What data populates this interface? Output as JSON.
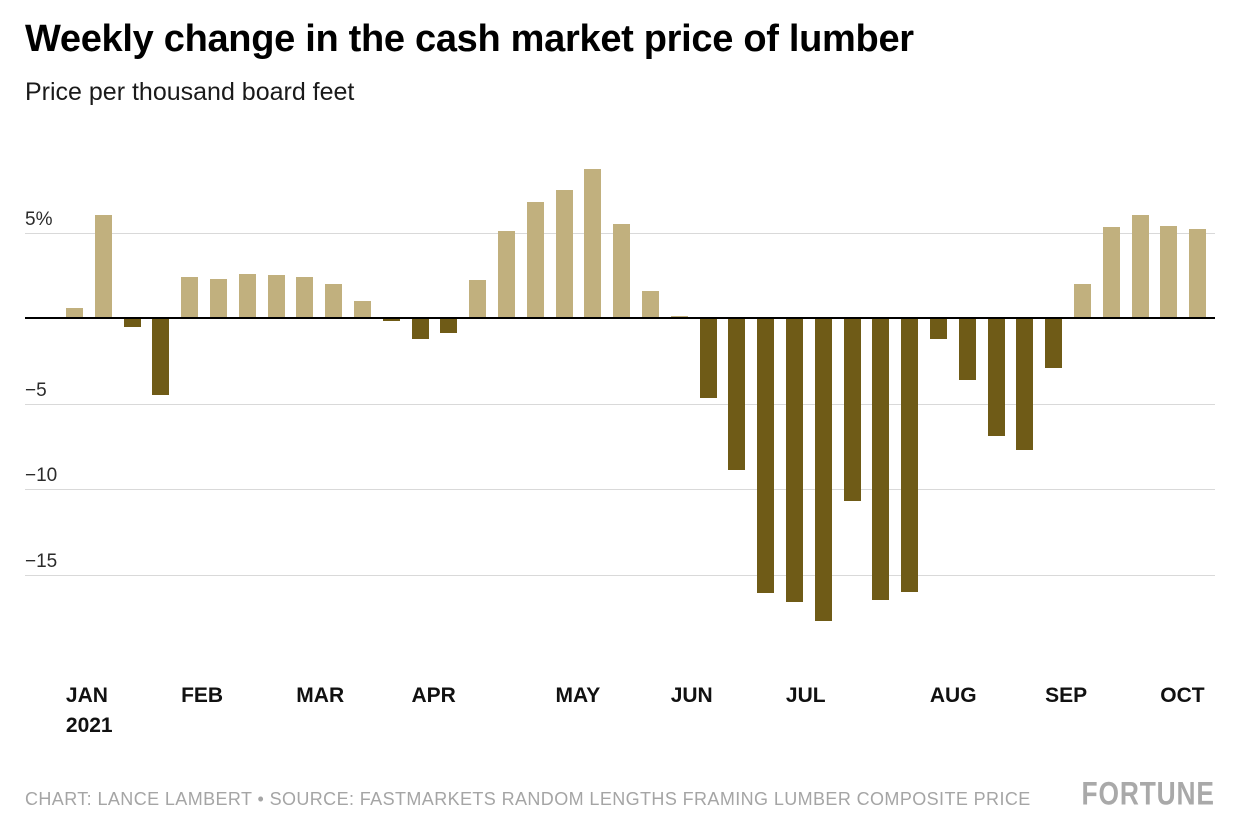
{
  "header": {
    "title": "Weekly change in the cash market price of lumber",
    "subtitle": "Price per thousand board feet"
  },
  "footer": {
    "attribution": "CHART: LANCE LAMBERT • SOURCE: FASTMARKETS RANDOM LENGTHS FRAMING LUMBER COMPOSITE PRICE",
    "brand": "FORTUNE"
  },
  "chart_data": {
    "type": "bar",
    "title": "Weekly change in the cash market price of lumber",
    "subtitle": "Price per thousand board feet",
    "value_unit": "percent weekly change",
    "ylim": [
      -18.6,
      9.9
    ],
    "grid": true,
    "legend": "none",
    "colors": {
      "positive": "#c1b07e",
      "negative": "#6f5b17"
    },
    "y_ticks": [
      {
        "value": 5,
        "label": "5%"
      },
      {
        "value": 0,
        "label": ""
      },
      {
        "value": -5,
        "label": "−5"
      },
      {
        "value": -10,
        "label": "−10"
      },
      {
        "value": -15,
        "label": "−15"
      }
    ],
    "months": [
      {
        "label": "JAN",
        "sublabel": "2021",
        "weekly_pct_change": [
          0.6,
          6.0,
          -0.5,
          -4.5
        ]
      },
      {
        "label": "FEB",
        "weekly_pct_change": [
          2.4,
          2.3,
          2.6,
          2.5
        ]
      },
      {
        "label": "MAR",
        "weekly_pct_change": [
          2.4,
          2.0,
          1.0,
          -0.2
        ]
      },
      {
        "label": "APR",
        "weekly_pct_change": [
          -1.2,
          -0.9,
          2.2,
          5.1,
          6.8
        ]
      },
      {
        "label": "MAY",
        "weekly_pct_change": [
          7.5,
          8.7,
          5.5,
          1.6
        ]
      },
      {
        "label": "JUN",
        "weekly_pct_change": [
          0.1,
          -4.7,
          -8.9,
          -16.1
        ]
      },
      {
        "label": "JUL",
        "weekly_pct_change": [
          -16.6,
          -17.7,
          -10.7,
          -16.5,
          -16.0
        ]
      },
      {
        "label": "AUG",
        "weekly_pct_change": [
          -1.2,
          -3.6,
          -6.9,
          -7.7
        ]
      },
      {
        "label": "SEP",
        "weekly_pct_change": [
          -2.9,
          2.0,
          5.3,
          6.0
        ]
      },
      {
        "label": "OCT",
        "weekly_pct_change": [
          5.4,
          5.2
        ]
      }
    ]
  }
}
